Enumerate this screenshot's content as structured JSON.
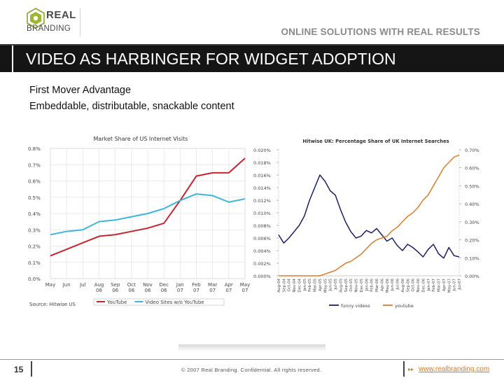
{
  "header": {
    "logo_word1": "REAL",
    "logo_word2": "BRANDING",
    "tagline": "ONLINE SOLUTIONS WITH REAL RESULTS"
  },
  "slide": {
    "title": "VIDEO AS HARBINGER FOR WIDGET ADOPTION",
    "bullets": [
      "First Mover Advantage",
      "Embeddable, distributable, snackable content"
    ]
  },
  "footer": {
    "page_number": "15",
    "copyright": "© 2007 Real Branding. Confidential. All rights reserved.",
    "url": "www.realbranding.com"
  },
  "colors": {
    "youtube_red": "#c8242e",
    "video_sites_blue": "#3db7d9",
    "funny_navy": "#1a1f66",
    "youtube_orange": "#e07b28",
    "link_orange": "#e07a10"
  },
  "chart_data": [
    {
      "type": "line",
      "title": "Market Share of US Internet Visits",
      "source": "Source: Hitwise US",
      "x": [
        "May",
        "Jun",
        "Jul",
        "Aug",
        "Sep",
        "Oct",
        "Nov",
        "Dec",
        "Jan",
        "Feb",
        "Mar",
        "Apr",
        "May"
      ],
      "x_row2": [
        "",
        "",
        "",
        "06",
        "06",
        "06",
        "06",
        "06",
        "07",
        "07",
        "07",
        "07",
        "07"
      ],
      "ylim": [
        0,
        0.8
      ],
      "yticks": [
        "0.0%",
        "0.1%",
        "0.2%",
        "0.3%",
        "0.4%",
        "0.5%",
        "0.6%",
        "0.7%",
        "0.8%"
      ],
      "grid": true,
      "legend_position": "bottom",
      "series": [
        {
          "name": "YouTube",
          "color": "#c8242e",
          "values": [
            0.14,
            0.18,
            0.22,
            0.26,
            0.27,
            0.29,
            0.31,
            0.34,
            0.48,
            0.63,
            0.65,
            0.65,
            0.74
          ]
        },
        {
          "name": "Video Sites w/o YouTube",
          "color": "#3db7d9",
          "values": [
            0.27,
            0.29,
            0.3,
            0.35,
            0.36,
            0.38,
            0.4,
            0.43,
            0.48,
            0.52,
            0.51,
            0.47,
            0.49
          ]
        }
      ]
    },
    {
      "type": "line",
      "title": "Hitwise UK: Percentage Share of UK Internet Searches",
      "x": [
        "Aug-04",
        "Sep-04",
        "Oct-04",
        "Nov-04",
        "Dec-04",
        "Jan-05",
        "Feb-05",
        "Mar-05",
        "Apr-05",
        "May-05",
        "Jun-05",
        "Jul-05",
        "Aug-05",
        "Sep-05",
        "Oct-05",
        "Nov-05",
        "Dec-05",
        "Jan-06",
        "Feb-06",
        "Mar-06",
        "Apr-06",
        "May-06",
        "Jun-06",
        "Jul-06",
        "Aug-06",
        "Sep-06",
        "Oct-06",
        "Nov-06",
        "Dec-06",
        "Jan-07",
        "Feb-07",
        "Mar-07",
        "Apr-07",
        "May-07",
        "Jun-07",
        "Jul-07"
      ],
      "y_left_ticks": [
        "0.000%",
        "0.002%",
        "0.004%",
        "0.006%",
        "0.008%",
        "0.010%",
        "0.012%",
        "0.014%",
        "0.016%",
        "0.018%",
        "0.020%"
      ],
      "y_right_ticks": [
        "0.00%",
        "0.10%",
        "0.20%",
        "0.30%",
        "0.40%",
        "0.50%",
        "0.60%",
        "0.70%"
      ],
      "ylim_left": [
        0,
        0.02
      ],
      "ylim_right": [
        0,
        0.7
      ],
      "legend_position": "bottom",
      "series": [
        {
          "name": "funny videos",
          "axis": "left",
          "color": "#1a1f66",
          "values": [
            0.0065,
            0.0052,
            0.006,
            0.007,
            0.008,
            0.0095,
            0.012,
            0.014,
            0.016,
            0.015,
            0.0135,
            0.0128,
            0.0105,
            0.0085,
            0.007,
            0.006,
            0.0063,
            0.0072,
            0.0068,
            0.0075,
            0.0065,
            0.0055,
            0.006,
            0.0048,
            0.004,
            0.005,
            0.0045,
            0.0038,
            0.003,
            0.0042,
            0.005,
            0.0035,
            0.0028,
            0.0045,
            0.0032,
            0.003
          ]
        },
        {
          "name": "youtube",
          "axis": "right",
          "color": "#e07b28",
          "values": [
            0.0,
            0.0,
            0.0,
            0.0,
            0.0,
            0.0,
            0.0,
            0.0,
            0.0,
            0.01,
            0.02,
            0.03,
            0.05,
            0.07,
            0.08,
            0.1,
            0.12,
            0.15,
            0.18,
            0.2,
            0.21,
            0.22,
            0.25,
            0.27,
            0.3,
            0.33,
            0.35,
            0.38,
            0.42,
            0.45,
            0.5,
            0.55,
            0.6,
            0.63,
            0.66,
            0.67
          ]
        }
      ]
    }
  ]
}
